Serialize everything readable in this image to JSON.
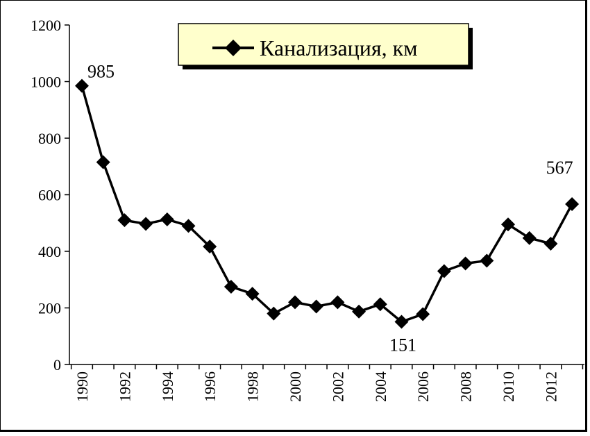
{
  "chart_data": {
    "type": "line",
    "title": "",
    "xlabel": "",
    "ylabel": "",
    "ylim": [
      0,
      1200
    ],
    "yticks": [
      0,
      200,
      400,
      600,
      800,
      1000,
      1200
    ],
    "xlim": [
      1990,
      2013
    ],
    "xticks": [
      1990,
      1992,
      1994,
      1996,
      1998,
      2000,
      2002,
      2004,
      2006,
      2008,
      2010,
      2012
    ],
    "grid": false,
    "legend": {
      "position": "top-center",
      "entries": [
        "Канализация, км"
      ]
    },
    "series": [
      {
        "name": "Канализация, км",
        "marker": "diamond",
        "color": "#000000",
        "x": [
          1990,
          1991,
          1992,
          1993,
          1994,
          1995,
          1996,
          1997,
          1998,
          1999,
          2000,
          2001,
          2002,
          2003,
          2004,
          2005,
          2006,
          2007,
          2008,
          2009,
          2010,
          2011,
          2012,
          2013
        ],
        "y": [
          985,
          715,
          510,
          497,
          513,
          490,
          417,
          275,
          250,
          180,
          220,
          205,
          220,
          187,
          213,
          151,
          178,
          330,
          357,
          367,
          495,
          447,
          427,
          567
        ]
      }
    ],
    "annotations": [
      {
        "x": 1990,
        "y": 985,
        "text": "985"
      },
      {
        "x": 2005,
        "y": 151,
        "text": "151"
      },
      {
        "x": 2013,
        "y": 567,
        "text": "567"
      }
    ]
  },
  "colors": {
    "legend_bg": "#ffffcc",
    "legend_shadow": "#000000",
    "line": "#000000"
  }
}
